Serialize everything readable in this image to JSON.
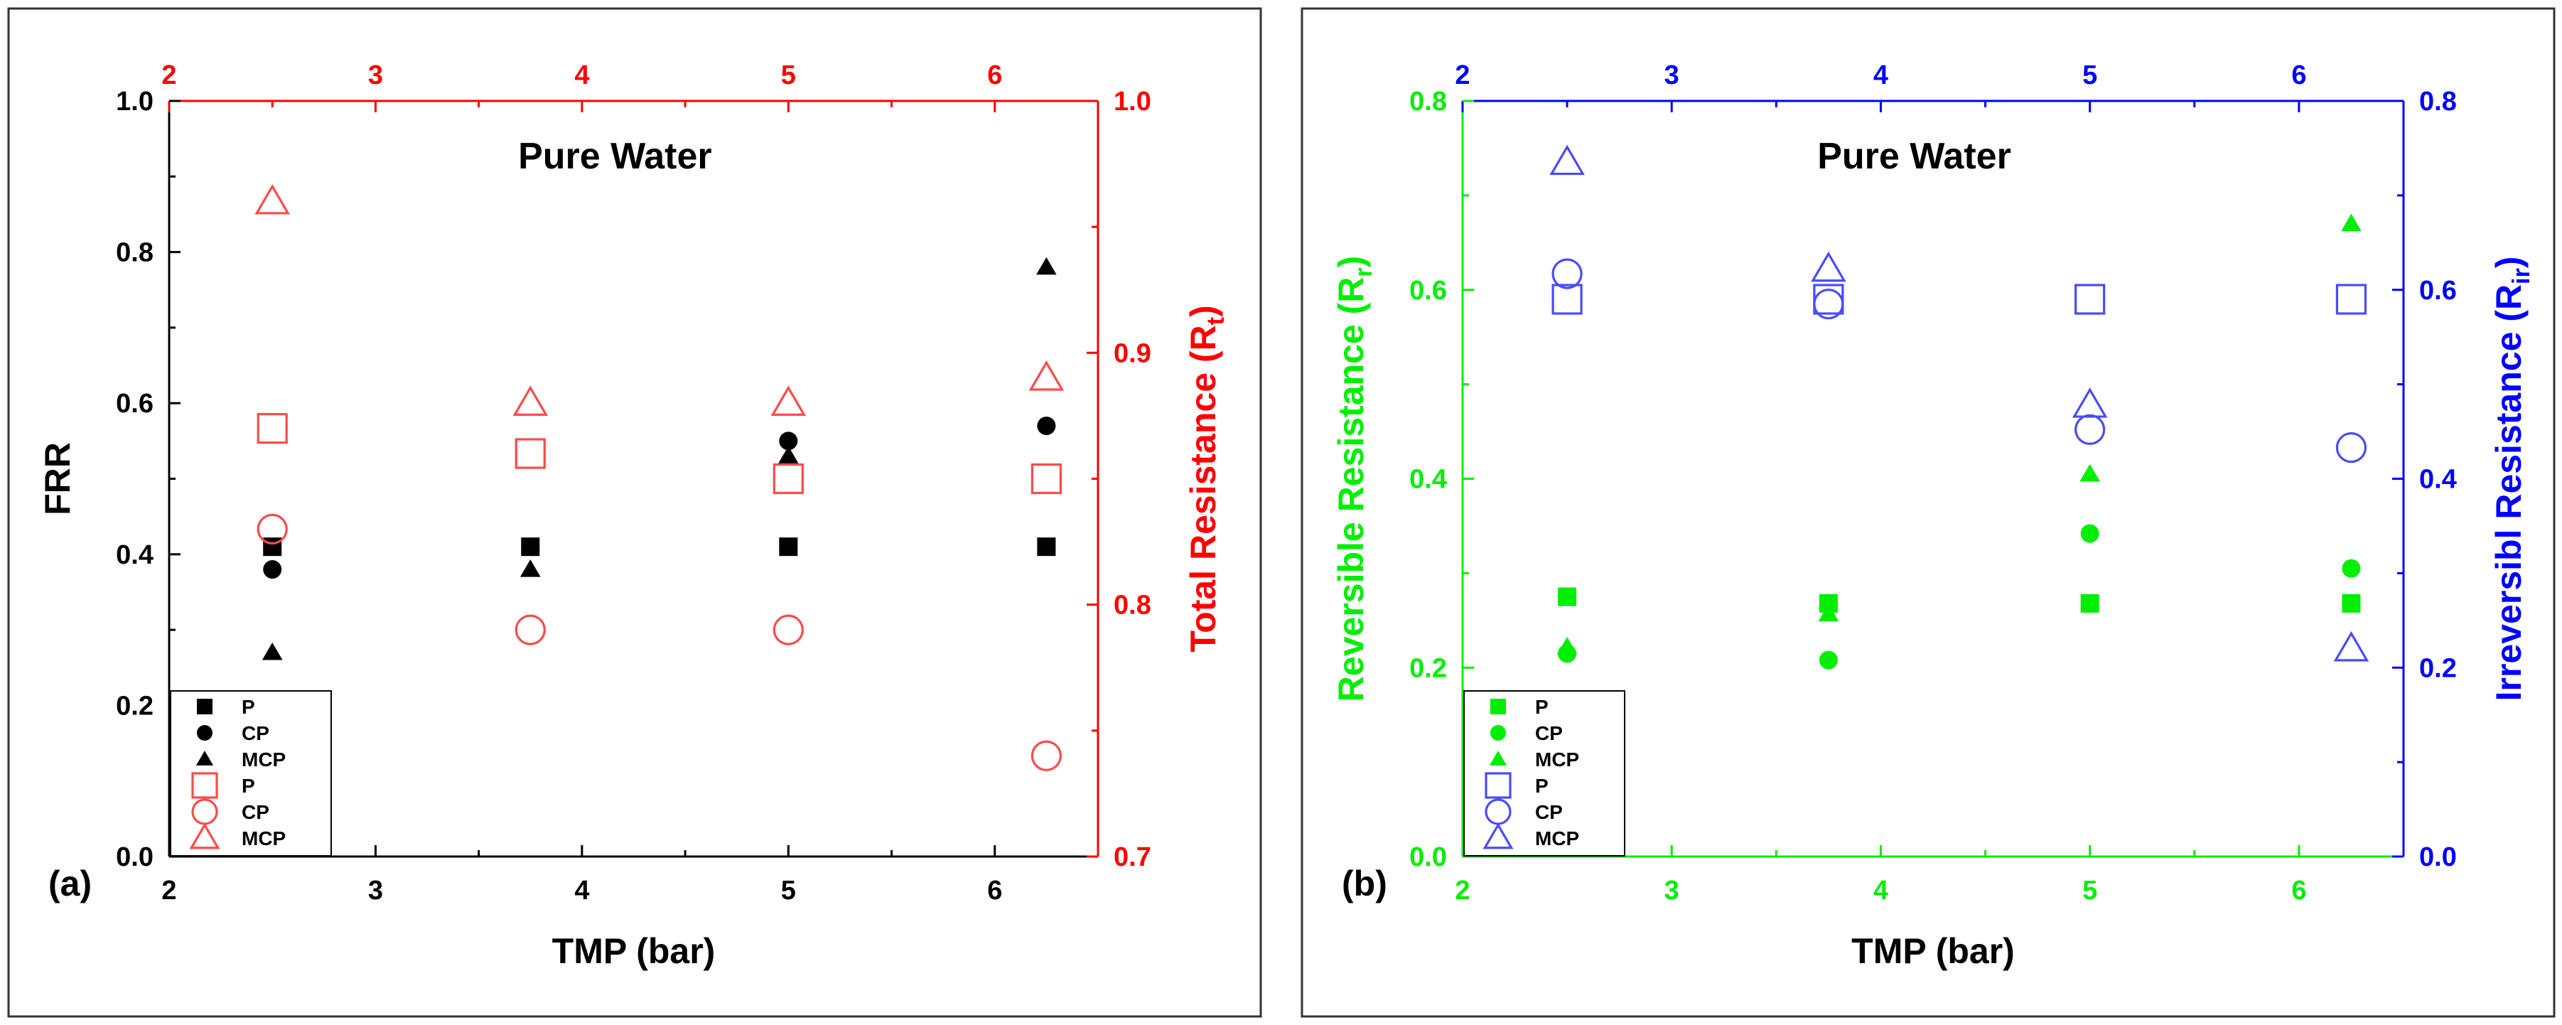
{
  "chart_data": [
    {
      "type": "scatter",
      "panel_label": "(a)",
      "annotation": "Pure Water",
      "xlabel": "TMP (bar)",
      "ylabel": "FRR",
      "ylabel_right": "Total Resistance (R",
      "ylabel_right_sub": "t",
      "ylabel_right_close": ")",
      "xlim": [
        2,
        6.5
      ],
      "ylim": [
        0.0,
        1.0
      ],
      "ylim_right": [
        0.7,
        1.0
      ],
      "x_ticks": [
        "2",
        "3",
        "4",
        "5",
        "6"
      ],
      "top_x_ticks": [
        "2",
        "3",
        "4",
        "5",
        "6"
      ],
      "y_ticks": [
        "0.0",
        "0.2",
        "0.4",
        "0.6",
        "0.8",
        "1.0"
      ],
      "y_ticks_right": [
        "0.7",
        "0.8",
        "0.9",
        "1.0"
      ],
      "colors": {
        "left": "#000000",
        "right": "#ff0000",
        "right_marker": "#ff4a4a"
      },
      "series": [
        {
          "name": "P",
          "marker": "square",
          "filled": true,
          "axis": "left",
          "x": [
            2.5,
            3.75,
            5.0,
            6.25
          ],
          "y": [
            0.41,
            0.41,
            0.41,
            0.41
          ]
        },
        {
          "name": "CP",
          "marker": "circle",
          "filled": true,
          "axis": "left",
          "x": [
            2.5,
            3.75,
            5.0,
            6.25
          ],
          "y": [
            0.38,
            0.41,
            0.55,
            0.57
          ]
        },
        {
          "name": "MCP",
          "marker": "triangle",
          "filled": true,
          "axis": "left",
          "x": [
            2.5,
            3.75,
            5.0,
            6.25
          ],
          "y": [
            0.27,
            0.38,
            0.53,
            0.78
          ]
        },
        {
          "name": "P",
          "marker": "square",
          "filled": false,
          "axis": "right",
          "x": [
            2.5,
            3.75,
            5.0,
            6.25
          ],
          "y": [
            0.87,
            0.86,
            0.85,
            0.85
          ]
        },
        {
          "name": "CP",
          "marker": "circle",
          "filled": false,
          "axis": "right",
          "x": [
            2.5,
            3.75,
            5.0,
            6.25
          ],
          "y": [
            0.83,
            0.79,
            0.79,
            0.74
          ]
        },
        {
          "name": "MCP",
          "marker": "triangle",
          "filled": false,
          "axis": "right",
          "x": [
            2.5,
            3.75,
            5.0,
            6.25
          ],
          "y": [
            0.96,
            0.88,
            0.88,
            0.89
          ]
        }
      ]
    },
    {
      "type": "scatter",
      "panel_label": "(b)",
      "annotation": "Pure Water",
      "xlabel": "TMP (bar)",
      "ylabel": "Reversible Resistance (R",
      "ylabel_sub": "r",
      "ylabel_close": ")",
      "ylabel_right": "Irreversibl Resistance (R",
      "ylabel_right_sub": "ir",
      "ylabel_right_close": ")",
      "xlim": [
        2,
        6.5
      ],
      "ylim": [
        0.0,
        0.8
      ],
      "ylim_right": [
        0.0,
        0.8
      ],
      "x_ticks": [
        "2",
        "3",
        "4",
        "5",
        "6"
      ],
      "top_x_ticks": [
        "2",
        "3",
        "4",
        "5",
        "6"
      ],
      "y_ticks": [
        "0.0",
        "0.2",
        "0.4",
        "0.6",
        "0.8"
      ],
      "y_ticks_right": [
        "0.0",
        "0.2",
        "0.4",
        "0.6",
        "0.8"
      ],
      "colors": {
        "left": "#00ee00",
        "right": "#0000ff",
        "right_marker": "#4a4aff"
      },
      "series": [
        {
          "name": "P",
          "marker": "square",
          "filled": true,
          "axis": "left",
          "x": [
            2.5,
            3.75,
            5.0,
            6.25
          ],
          "y": [
            0.275,
            0.268,
            0.268,
            0.268
          ]
        },
        {
          "name": "CP",
          "marker": "circle",
          "filled": true,
          "axis": "left",
          "x": [
            2.5,
            3.75,
            5.0,
            6.25
          ],
          "y": [
            0.215,
            0.208,
            0.342,
            0.305
          ]
        },
        {
          "name": "MCP",
          "marker": "triangle",
          "filled": true,
          "axis": "left",
          "x": [
            2.5,
            3.75,
            5.0,
            6.25
          ],
          "y": [
            0.222,
            0.257,
            0.405,
            0.67
          ]
        },
        {
          "name": "P",
          "marker": "square",
          "filled": false,
          "axis": "right",
          "x": [
            2.5,
            3.75,
            5.0,
            6.25
          ],
          "y": [
            0.59,
            0.59,
            0.59,
            0.59
          ]
        },
        {
          "name": "CP",
          "marker": "circle",
          "filled": false,
          "axis": "right",
          "x": [
            2.5,
            3.75,
            5.0,
            6.25
          ],
          "y": [
            0.617,
            0.585,
            0.452,
            0.433
          ]
        },
        {
          "name": "MCP",
          "marker": "triangle",
          "filled": false,
          "axis": "right",
          "x": [
            2.5,
            3.75,
            5.0,
            6.25
          ],
          "y": [
            0.735,
            0.622,
            0.478,
            0.22
          ]
        }
      ]
    }
  ]
}
